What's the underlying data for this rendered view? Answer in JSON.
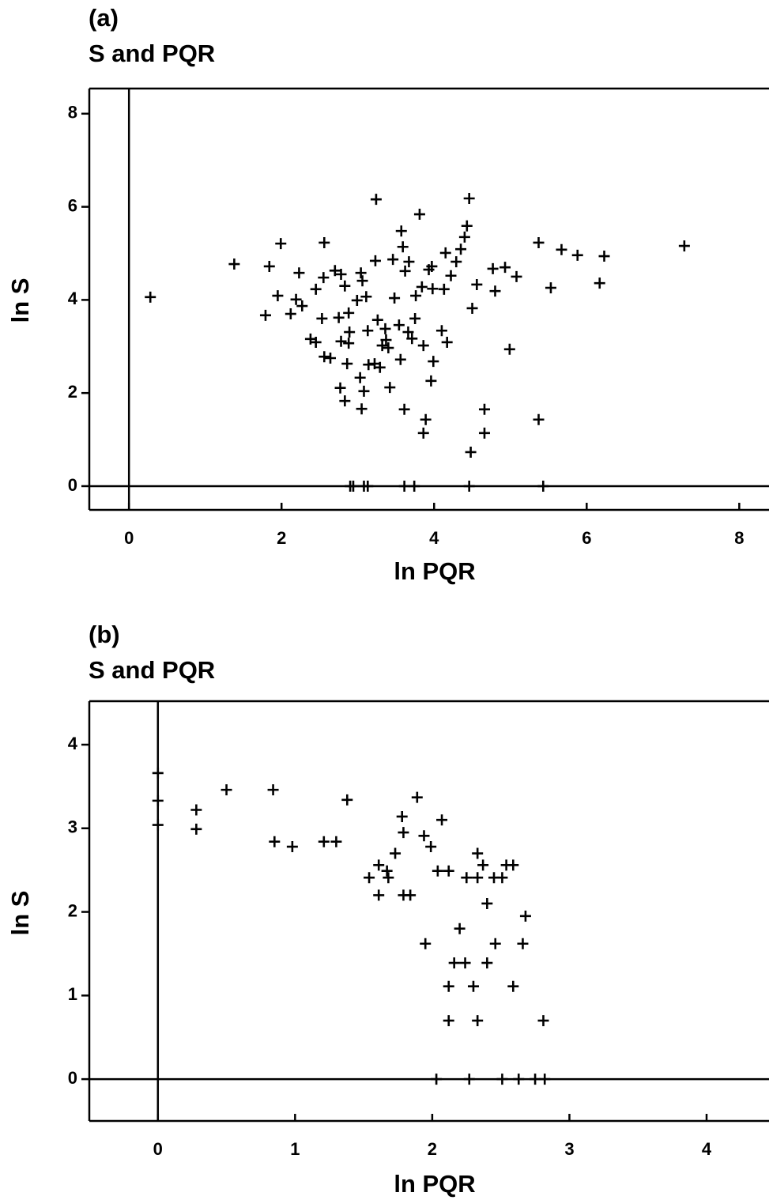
{
  "chart_data": [
    {
      "type": "scatter",
      "panel": "(a)",
      "title": "S and PQR",
      "xlabel": "ln PQR",
      "ylabel": "ln S",
      "xlim": [
        -0.52,
        8.39
      ],
      "ylim": [
        -0.51,
        8.54
      ],
      "xticks": [
        0,
        2,
        4,
        6,
        8
      ],
      "yticks": [
        0,
        2,
        4,
        6,
        8
      ],
      "color": "#000000",
      "x": [
        0.28,
        1.38,
        1.84,
        1.99,
        1.79,
        1.95,
        2.12,
        2.19,
        2.23,
        2.27,
        2.38,
        2.45,
        2.45,
        2.55,
        2.56,
        2.53,
        2.56,
        2.64,
        2.7,
        2.75,
        2.78,
        2.83,
        2.88,
        2.77,
        2.83,
        2.78,
        2.88,
        2.86,
        2.89,
        2.99,
        3.03,
        3.05,
        3.08,
        3.04,
        3.06,
        3.11,
        3.13,
        3.14,
        3.24,
        3.23,
        3.26,
        3.22,
        3.29,
        3.32,
        3.36,
        3.37,
        3.4,
        3.42,
        3.46,
        3.48,
        3.54,
        3.57,
        3.56,
        3.59,
        3.61,
        3.62,
        3.67,
        3.66,
        3.71,
        3.75,
        3.76,
        3.81,
        3.86,
        3.84,
        3.89,
        3.86,
        3.93,
        3.97,
        3.98,
        3.96,
        3.99,
        4.1,
        4.17,
        4.13,
        4.15,
        4.22,
        4.29,
        4.35,
        4.4,
        4.43,
        4.46,
        4.5,
        4.48,
        4.56,
        4.66,
        4.66,
        4.77,
        4.8,
        4.93,
        4.99,
        5.08,
        5.37,
        5.37,
        5.53,
        5.67,
        5.88,
        6.17,
        6.23,
        7.28,
        2.9,
        2.94,
        3.08,
        3.13,
        3.61,
        3.74,
        4.46,
        5.43
      ],
      "values": [
        4.06,
        4.77,
        4.72,
        5.21,
        3.67,
        4.09,
        3.7,
        4.01,
        4.58,
        3.87,
        3.16,
        3.09,
        4.23,
        4.48,
        5.23,
        3.6,
        2.78,
        2.75,
        4.63,
        3.62,
        4.55,
        4.3,
        3.72,
        2.11,
        1.83,
        3.11,
        3.07,
        2.63,
        3.31,
        3.99,
        2.33,
        1.66,
        2.04,
        4.58,
        4.41,
        4.07,
        3.34,
        2.61,
        6.16,
        4.84,
        3.57,
        2.63,
        2.55,
        3.02,
        3.38,
        3.14,
        2.97,
        2.12,
        4.87,
        4.04,
        3.46,
        5.48,
        2.72,
        5.14,
        1.65,
        4.62,
        4.82,
        3.31,
        3.17,
        3.6,
        4.09,
        5.84,
        3.02,
        4.28,
        1.43,
        1.14,
        4.65,
        4.72,
        4.24,
        2.26,
        2.68,
        3.34,
        3.09,
        4.23,
        5.01,
        4.52,
        4.82,
        5.09,
        5.35,
        5.59,
        6.18,
        3.82,
        0.73,
        4.33,
        1.65,
        1.14,
        4.67,
        4.19,
        4.7,
        2.94,
        4.5,
        5.23,
        1.43,
        4.26,
        5.08,
        4.96,
        4.36,
        4.94,
        5.16,
        0,
        0,
        0,
        0,
        0,
        0,
        0,
        0
      ]
    },
    {
      "type": "scatter",
      "panel": "(b)",
      "title": "S and PQR",
      "xlabel": "ln PQR",
      "ylabel": "ln S",
      "xlim": [
        -0.5,
        4.455
      ],
      "ylim": [
        -0.5,
        4.52
      ],
      "xticks": [
        0,
        1,
        2,
        3,
        4
      ],
      "yticks": [
        0,
        1,
        2,
        3,
        4
      ],
      "color": "#000000",
      "x": [
        0,
        0,
        0,
        0.28,
        0.28,
        0.5,
        0.84,
        0.85,
        0.98,
        1.21,
        1.3,
        1.38,
        1.54,
        1.61,
        1.61,
        1.67,
        1.68,
        1.73,
        1.78,
        1.79,
        1.79,
        1.84,
        1.89,
        1.94,
        1.95,
        1.99,
        2.04,
        2.07,
        2.12,
        2.12,
        2.12,
        2.16,
        2.2,
        2.24,
        2.25,
        2.3,
        2.33,
        2.33,
        2.33,
        2.37,
        2.4,
        2.4,
        2.45,
        2.46,
        2.51,
        2.54,
        2.59,
        2.59,
        2.66,
        2.68,
        2.81,
        2.03,
        2.27,
        2.51,
        2.63,
        2.75,
        2.82
      ],
      "values": [
        3.66,
        3.33,
        3.04,
        3.22,
        2.99,
        3.46,
        3.46,
        2.84,
        2.78,
        2.84,
        2.84,
        3.34,
        2.41,
        2.56,
        2.2,
        2.49,
        2.41,
        2.7,
        3.14,
        2.95,
        2.2,
        2.2,
        3.37,
        2.91,
        1.62,
        2.78,
        2.49,
        3.1,
        2.49,
        1.11,
        0.7,
        1.39,
        1.8,
        1.39,
        2.41,
        1.11,
        2.41,
        2.7,
        0.7,
        2.56,
        1.39,
        2.1,
        2.41,
        1.62,
        2.41,
        2.56,
        2.56,
        1.11,
        1.62,
        1.95,
        0.7,
        0,
        0,
        0,
        0,
        0,
        0
      ]
    }
  ]
}
